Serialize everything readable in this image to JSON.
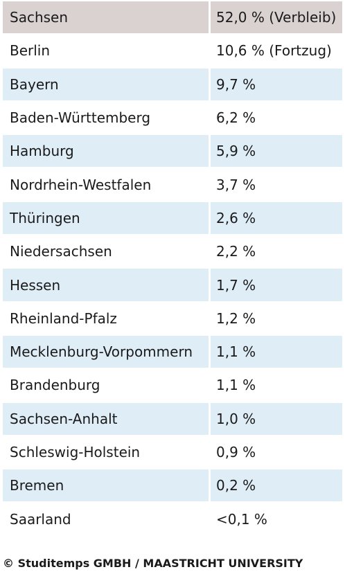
{
  "table": {
    "rows": [
      {
        "region": "Sachsen",
        "share": "52,0 % (Verbleib)"
      },
      {
        "region": "Berlin",
        "share": "10,6 % (Fortzug)"
      },
      {
        "region": "Bayern",
        "share": "9,7 %"
      },
      {
        "region": "Baden-Württemberg",
        "share": "6,2 %"
      },
      {
        "region": "Hamburg",
        "share": "5,9 %"
      },
      {
        "region": "Nordrhein-Westfalen",
        "share": "3,7 %"
      },
      {
        "region": "Thüringen",
        "share": "2,6 %"
      },
      {
        "region": "Niedersachsen",
        "share": "2,2 %"
      },
      {
        "region": "Hessen",
        "share": "1,7 %"
      },
      {
        "region": "Rheinland-Pfalz",
        "share": "1,2 %"
      },
      {
        "region": "Mecklenburg-Vorpommern",
        "share": "1,1 %"
      },
      {
        "region": "Brandenburg",
        "share": "1,1 %"
      },
      {
        "region": "Sachsen-Anhalt",
        "share": "1,0 %"
      },
      {
        "region": "Schleswig-Holstein",
        "share": "0,9 %"
      },
      {
        "region": "Bremen",
        "share": "0,2 %"
      },
      {
        "region": "Saarland",
        "share": "<0,1 %"
      }
    ]
  },
  "credit": "© Studitemps GMBH / MAASTRICHT UNIVERSITY",
  "colors": {
    "header_row": "#d9d2d0",
    "shaded_row": "#dfedf7",
    "plain_row": "#ffffff",
    "text": "#1a1a1a"
  }
}
